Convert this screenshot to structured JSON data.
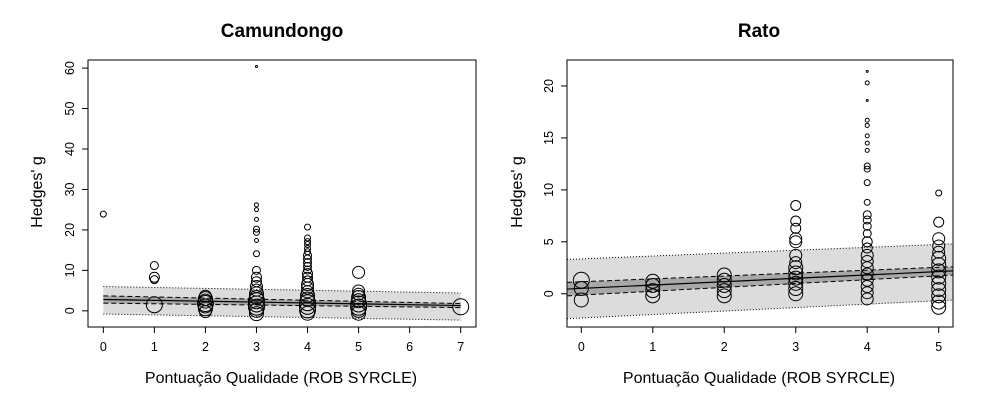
{
  "figure": {
    "background": "#ffffff",
    "band_color": "#dcdcdc",
    "ink": "#000000"
  },
  "chart_data": [
    {
      "type": "scatter",
      "title": "Camundongo",
      "xlabel": "Pontuação Qualidade (ROB SYRCLE)",
      "ylabel": "Hedges' g",
      "xlim": [
        -0.3,
        7.3
      ],
      "ylim": [
        -4,
        62
      ],
      "xticks": [
        "0",
        "1",
        "2",
        "3",
        "4",
        "5",
        "6",
        "7"
      ],
      "yticks": [
        "0",
        "10",
        "20",
        "30",
        "40",
        "50",
        "60"
      ],
      "points": [
        {
          "x": 0,
          "y": 23.9,
          "s": 3
        },
        {
          "x": 1,
          "y": 11.2,
          "s": 4
        },
        {
          "x": 1,
          "y": 8.3,
          "s": 5
        },
        {
          "x": 1,
          "y": 7.7,
          "s": 4
        },
        {
          "x": 1,
          "y": 1.5,
          "s": 8
        },
        {
          "x": 2,
          "y": 3.6,
          "s": 6
        },
        {
          "x": 2,
          "y": 3.0,
          "s": 7
        },
        {
          "x": 2,
          "y": 2.4,
          "s": 7
        },
        {
          "x": 2,
          "y": 1.8,
          "s": 8
        },
        {
          "x": 2,
          "y": 1.2,
          "s": 7
        },
        {
          "x": 2,
          "y": 0.5,
          "s": 7
        },
        {
          "x": 2,
          "y": -0.2,
          "s": 6
        },
        {
          "x": 3,
          "y": 60.4,
          "s": 1
        },
        {
          "x": 3,
          "y": 26.2,
          "s": 2
        },
        {
          "x": 3,
          "y": 25.0,
          "s": 2
        },
        {
          "x": 3,
          "y": 22.6,
          "s": 2
        },
        {
          "x": 3,
          "y": 20.2,
          "s": 3
        },
        {
          "x": 3,
          "y": 19.4,
          "s": 3
        },
        {
          "x": 3,
          "y": 17.4,
          "s": 2
        },
        {
          "x": 3,
          "y": 14.1,
          "s": 3
        },
        {
          "x": 3,
          "y": 10.0,
          "s": 4
        },
        {
          "x": 3,
          "y": 8.3,
          "s": 5
        },
        {
          "x": 3,
          "y": 7.2,
          "s": 5
        },
        {
          "x": 3,
          "y": 6.0,
          "s": 6
        },
        {
          "x": 3,
          "y": 5.1,
          "s": 6
        },
        {
          "x": 3,
          "y": 4.2,
          "s": 7
        },
        {
          "x": 3,
          "y": 3.3,
          "s": 7
        },
        {
          "x": 3,
          "y": 2.5,
          "s": 8
        },
        {
          "x": 3,
          "y": 1.7,
          "s": 8
        },
        {
          "x": 3,
          "y": 0.9,
          "s": 8
        },
        {
          "x": 3,
          "y": 0.1,
          "s": 7
        },
        {
          "x": 3,
          "y": -0.7,
          "s": 7
        },
        {
          "x": 4,
          "y": 20.7,
          "s": 3
        },
        {
          "x": 4,
          "y": 18.0,
          "s": 3
        },
        {
          "x": 4,
          "y": 17.1,
          "s": 3
        },
        {
          "x": 4,
          "y": 16.4,
          "s": 3
        },
        {
          "x": 4,
          "y": 15.4,
          "s": 3
        },
        {
          "x": 4,
          "y": 14.6,
          "s": 3
        },
        {
          "x": 4,
          "y": 13.7,
          "s": 4
        },
        {
          "x": 4,
          "y": 12.8,
          "s": 4
        },
        {
          "x": 4,
          "y": 11.9,
          "s": 4
        },
        {
          "x": 4,
          "y": 11.0,
          "s": 4
        },
        {
          "x": 4,
          "y": 10.1,
          "s": 4
        },
        {
          "x": 4,
          "y": 9.2,
          "s": 5
        },
        {
          "x": 4,
          "y": 8.3,
          "s": 5
        },
        {
          "x": 4,
          "y": 7.4,
          "s": 5
        },
        {
          "x": 4,
          "y": 6.5,
          "s": 6
        },
        {
          "x": 4,
          "y": 5.6,
          "s": 6
        },
        {
          "x": 4,
          "y": 4.7,
          "s": 6
        },
        {
          "x": 4,
          "y": 3.8,
          "s": 7
        },
        {
          "x": 4,
          "y": 2.9,
          "s": 7
        },
        {
          "x": 4,
          "y": 2.0,
          "s": 8
        },
        {
          "x": 4,
          "y": 1.1,
          "s": 8
        },
        {
          "x": 4,
          "y": 0.2,
          "s": 8
        },
        {
          "x": 4,
          "y": -0.6,
          "s": 7
        },
        {
          "x": 5,
          "y": 9.5,
          "s": 6
        },
        {
          "x": 5,
          "y": 4.9,
          "s": 6
        },
        {
          "x": 5,
          "y": 4.1,
          "s": 6
        },
        {
          "x": 5,
          "y": 3.3,
          "s": 7
        },
        {
          "x": 5,
          "y": 2.5,
          "s": 7
        },
        {
          "x": 5,
          "y": 1.7,
          "s": 8
        },
        {
          "x": 5,
          "y": 0.9,
          "s": 8
        },
        {
          "x": 5,
          "y": 0.1,
          "s": 7
        },
        {
          "x": 5,
          "y": -0.6,
          "s": 7
        },
        {
          "x": 7,
          "y": 1.0,
          "s": 8
        }
      ],
      "regression": {
        "x": [
          0,
          7
        ],
        "y": [
          2.8,
          1.3
        ]
      },
      "ci": {
        "lower": [
          1.9,
          0.8
        ],
        "upper": [
          3.7,
          1.8
        ]
      },
      "pi": {
        "lower": [
          -0.8,
          -2.3
        ],
        "upper": [
          6.0,
          4.4
        ]
      }
    },
    {
      "type": "scatter",
      "title": "Rato",
      "xlabel": "Pontuação Qualidade (ROB SYRCLE)",
      "ylabel": "Hedges' g",
      "xlim": [
        -0.2,
        5.2
      ],
      "ylim": [
        -3.2,
        22.5
      ],
      "xticks": [
        "0",
        "1",
        "2",
        "3",
        "4",
        "5"
      ],
      "yticks": [
        "0",
        "5",
        "10",
        "15",
        "20"
      ],
      "points": [
        {
          "x": 0,
          "y": 1.3,
          "s": 8
        },
        {
          "x": 0,
          "y": 0.5,
          "s": 7
        },
        {
          "x": 0,
          "y": -0.6,
          "s": 7
        },
        {
          "x": 1,
          "y": 1.2,
          "s": 7
        },
        {
          "x": 1,
          "y": 0.8,
          "s": 7
        },
        {
          "x": 1,
          "y": 0.3,
          "s": 7
        },
        {
          "x": 1,
          "y": -0.2,
          "s": 7
        },
        {
          "x": 2,
          "y": 1.8,
          "s": 7
        },
        {
          "x": 2,
          "y": 1.3,
          "s": 7
        },
        {
          "x": 2,
          "y": 0.8,
          "s": 7
        },
        {
          "x": 2,
          "y": 0.3,
          "s": 7
        },
        {
          "x": 2,
          "y": -0.2,
          "s": 7
        },
        {
          "x": 3,
          "y": 8.5,
          "s": 5
        },
        {
          "x": 3,
          "y": 7.0,
          "s": 5
        },
        {
          "x": 3,
          "y": 6.3,
          "s": 5
        },
        {
          "x": 3,
          "y": 5.3,
          "s": 6
        },
        {
          "x": 3,
          "y": 5.0,
          "s": 6
        },
        {
          "x": 3,
          "y": 3.7,
          "s": 6
        },
        {
          "x": 3,
          "y": 3.0,
          "s": 6
        },
        {
          "x": 3,
          "y": 2.5,
          "s": 7
        },
        {
          "x": 3,
          "y": 2.0,
          "s": 7
        },
        {
          "x": 3,
          "y": 1.5,
          "s": 7
        },
        {
          "x": 3,
          "y": 1.0,
          "s": 7
        },
        {
          "x": 3,
          "y": 0.5,
          "s": 7
        },
        {
          "x": 3,
          "y": 0.0,
          "s": 7
        },
        {
          "x": 4,
          "y": 21.4,
          "s": 1
        },
        {
          "x": 4,
          "y": 20.3,
          "s": 2
        },
        {
          "x": 4,
          "y": 18.6,
          "s": 1
        },
        {
          "x": 4,
          "y": 16.7,
          "s": 2
        },
        {
          "x": 4,
          "y": 16.2,
          "s": 2
        },
        {
          "x": 4,
          "y": 15.2,
          "s": 2
        },
        {
          "x": 4,
          "y": 14.5,
          "s": 2
        },
        {
          "x": 4,
          "y": 13.8,
          "s": 2
        },
        {
          "x": 4,
          "y": 12.3,
          "s": 3
        },
        {
          "x": 4,
          "y": 12.0,
          "s": 3
        },
        {
          "x": 4,
          "y": 10.7,
          "s": 3
        },
        {
          "x": 4,
          "y": 8.8,
          "s": 3
        },
        {
          "x": 4,
          "y": 7.6,
          "s": 4
        },
        {
          "x": 4,
          "y": 7.1,
          "s": 4
        },
        {
          "x": 4,
          "y": 6.5,
          "s": 4
        },
        {
          "x": 4,
          "y": 5.8,
          "s": 4
        },
        {
          "x": 4,
          "y": 5.0,
          "s": 5
        },
        {
          "x": 4,
          "y": 4.4,
          "s": 5
        },
        {
          "x": 4,
          "y": 3.7,
          "s": 6
        },
        {
          "x": 4,
          "y": 3.1,
          "s": 6
        },
        {
          "x": 4,
          "y": 2.5,
          "s": 6
        },
        {
          "x": 4,
          "y": 1.9,
          "s": 6
        },
        {
          "x": 4,
          "y": 1.3,
          "s": 6
        },
        {
          "x": 4,
          "y": 0.7,
          "s": 6
        },
        {
          "x": 4,
          "y": 0.1,
          "s": 6
        },
        {
          "x": 4,
          "y": -0.5,
          "s": 6
        },
        {
          "x": 5,
          "y": 9.7,
          "s": 3
        },
        {
          "x": 5,
          "y": 6.9,
          "s": 5
        },
        {
          "x": 5,
          "y": 5.3,
          "s": 6
        },
        {
          "x": 5,
          "y": 4.6,
          "s": 6
        },
        {
          "x": 5,
          "y": 4.0,
          "s": 6
        },
        {
          "x": 5,
          "y": 3.4,
          "s": 7
        },
        {
          "x": 5,
          "y": 2.8,
          "s": 7
        },
        {
          "x": 5,
          "y": 2.2,
          "s": 7
        },
        {
          "x": 5,
          "y": 1.6,
          "s": 7
        },
        {
          "x": 5,
          "y": 1.0,
          "s": 7
        },
        {
          "x": 5,
          "y": 0.4,
          "s": 7
        },
        {
          "x": 5,
          "y": -0.2,
          "s": 7
        },
        {
          "x": 5,
          "y": -0.8,
          "s": 7
        },
        {
          "x": 5,
          "y": -1.3,
          "s": 7
        }
      ],
      "regression": {
        "x": [
          -0.2,
          5.2
        ],
        "y": [
          0.45,
          2.2
        ]
      },
      "ci": {
        "lower": [
          -0.2,
          1.8
        ],
        "upper": [
          1.1,
          2.6
        ]
      },
      "pi": {
        "lower": [
          -2.4,
          -0.6
        ],
        "upper": [
          3.3,
          4.8
        ]
      }
    }
  ]
}
